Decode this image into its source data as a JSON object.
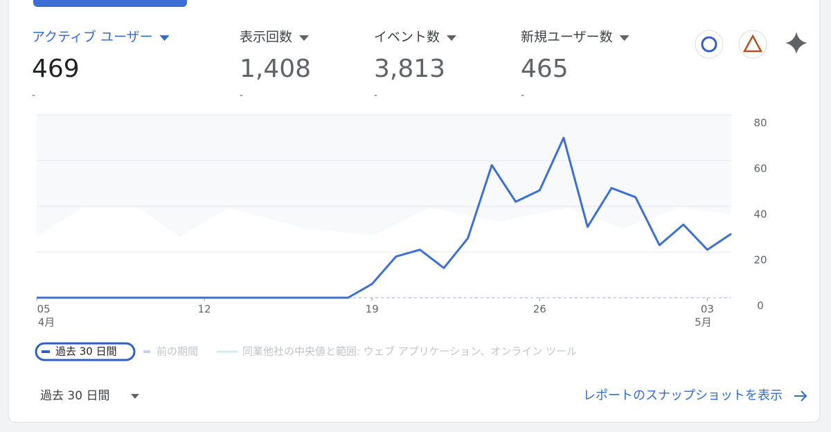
{
  "metrics": [
    {
      "label": "アクティブ ユーザー",
      "value": "469",
      "change": "-"
    },
    {
      "label": "表示回数",
      "value": "1,408",
      "change": "-"
    },
    {
      "label": "イベント数",
      "value": "3,813",
      "change": "-"
    },
    {
      "label": "新規ユーザー数",
      "value": "465",
      "change": "-"
    }
  ],
  "chart_data": {
    "type": "line",
    "categories": [
      "05",
      null,
      null,
      null,
      null,
      null,
      null,
      "12",
      null,
      null,
      null,
      null,
      null,
      null,
      "19",
      null,
      null,
      null,
      null,
      null,
      null,
      "26",
      null,
      null,
      null,
      null,
      null,
      null,
      "03",
      null
    ],
    "month_labels": [
      "4月",
      null,
      null,
      null,
      null,
      null,
      null,
      null,
      null,
      null,
      null,
      null,
      null,
      null,
      null,
      null,
      null,
      null,
      null,
      null,
      null,
      null,
      null,
      null,
      null,
      null,
      null,
      null,
      "5月",
      null
    ],
    "series": [
      {
        "name": "過去 30 日間",
        "color": "#3c6fd4",
        "values": [
          0,
          0,
          0,
          0,
          0,
          0,
          0,
          0,
          0,
          0,
          0,
          0,
          0,
          0,
          6,
          18,
          21,
          13,
          26,
          58,
          42,
          47,
          70,
          31,
          48,
          44,
          23,
          32,
          21,
          28
        ]
      }
    ],
    "ylim": [
      0,
      80
    ],
    "yticks": [
      0,
      20,
      40,
      60,
      80
    ],
    "grid": true
  },
  "legend": {
    "previous": "前の期間",
    "benchmark": "同業他社の中央値と範囲: ウェブ アプリケーション、オンライン ツール"
  },
  "footer": {
    "range": "過去 30 日間",
    "link": "レポートのスナップショットを表示"
  }
}
